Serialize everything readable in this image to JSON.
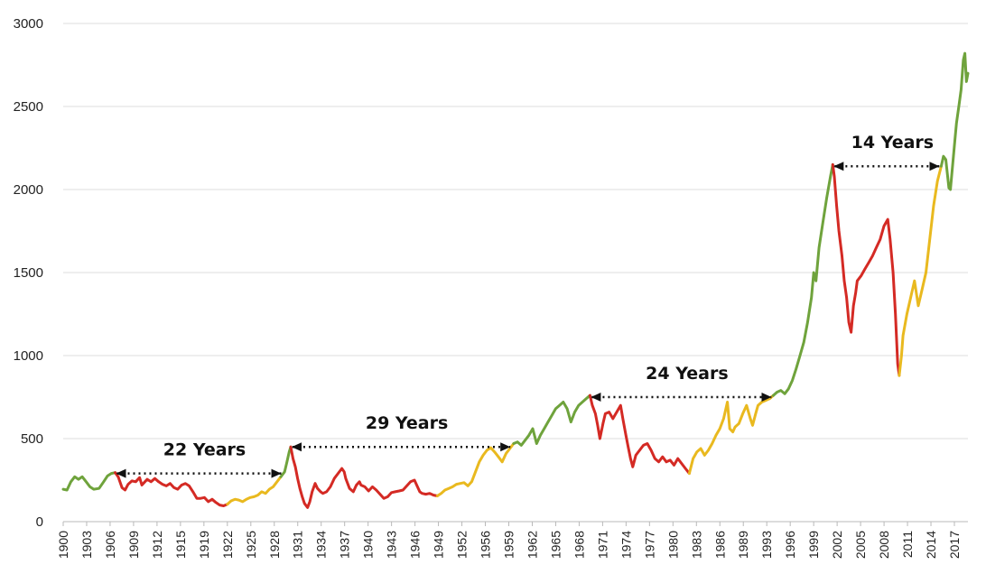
{
  "chart_data": {
    "type": "line",
    "title": "",
    "xlabel": "",
    "ylabel": "",
    "ylim": [
      0,
      3000
    ],
    "xlim": [
      1900,
      2018.5
    ],
    "grid": "horizontal",
    "y_ticks": [
      0,
      500,
      1000,
      1500,
      2000,
      2500,
      3000
    ],
    "x_ticks": [
      "1900",
      "1903",
      "1906",
      "1909",
      "1912",
      "1915",
      "1919",
      "1922",
      "1925",
      "1928",
      "1931",
      "1934",
      "1937",
      "1940",
      "1943",
      "1946",
      "1949",
      "1952",
      "1956",
      "1959",
      "1962",
      "1965",
      "1968",
      "1971",
      "1974",
      "1977",
      "1980",
      "1983",
      "1986",
      "1989",
      "1993",
      "1996",
      "1999",
      "2002",
      "2005",
      "2008",
      "2011",
      "2014",
      "2017"
    ],
    "colors": {
      "green": "#6fa33c",
      "red": "#d42a24",
      "yellow": "#e9b91f"
    },
    "series": [
      {
        "color": "green",
        "points": [
          [
            1900,
            195
          ],
          [
            1900.5,
            190
          ],
          [
            1901,
            240
          ],
          [
            1901.5,
            270
          ],
          [
            1902,
            255
          ],
          [
            1902.5,
            270
          ],
          [
            1903,
            240
          ],
          [
            1903.5,
            210
          ],
          [
            1904,
            195
          ],
          [
            1904.7,
            200
          ],
          [
            1905.3,
            240
          ],
          [
            1905.8,
            275
          ],
          [
            1906.3,
            290
          ],
          [
            1906.8,
            295
          ]
        ]
      },
      {
        "color": "red",
        "points": [
          [
            1906.8,
            295
          ],
          [
            1907.2,
            270
          ],
          [
            1907.7,
            205
          ],
          [
            1908.1,
            190
          ],
          [
            1908.5,
            225
          ],
          [
            1909,
            245
          ],
          [
            1909.5,
            240
          ],
          [
            1910,
            265
          ],
          [
            1910.3,
            220
          ],
          [
            1910.7,
            240
          ],
          [
            1911,
            255
          ],
          [
            1911.5,
            240
          ],
          [
            1912,
            260
          ],
          [
            1912.5,
            240
          ],
          [
            1913,
            225
          ],
          [
            1913.5,
            215
          ],
          [
            1914,
            230
          ],
          [
            1914.5,
            205
          ],
          [
            1915,
            195
          ],
          [
            1915.5,
            220
          ],
          [
            1916,
            230
          ],
          [
            1916.5,
            215
          ],
          [
            1917,
            180
          ],
          [
            1917.5,
            140
          ],
          [
            1918,
            140
          ],
          [
            1918.5,
            145
          ],
          [
            1919,
            120
          ],
          [
            1919.5,
            135
          ],
          [
            1920,
            115
          ],
          [
            1920.5,
            100
          ],
          [
            1921,
            95
          ],
          [
            1921.5,
            105
          ]
        ]
      },
      {
        "color": "yellow",
        "points": [
          [
            1921.5,
            105
          ],
          [
            1922,
            125
          ],
          [
            1922.5,
            135
          ],
          [
            1923,
            130
          ],
          [
            1923.5,
            120
          ],
          [
            1924,
            135
          ],
          [
            1924.5,
            145
          ],
          [
            1925,
            150
          ],
          [
            1925.5,
            160
          ],
          [
            1926,
            180
          ],
          [
            1926.5,
            170
          ],
          [
            1927,
            195
          ],
          [
            1927.5,
            210
          ],
          [
            1928,
            240
          ],
          [
            1928.5,
            270
          ]
        ]
      },
      {
        "color": "green",
        "points": [
          [
            1928.5,
            270
          ],
          [
            1929,
            300
          ],
          [
            1929.3,
            360
          ],
          [
            1929.6,
            420
          ],
          [
            1929.8,
            450
          ]
        ]
      },
      {
        "color": "red",
        "points": [
          [
            1929.8,
            450
          ],
          [
            1930.1,
            380
          ],
          [
            1930.4,
            330
          ],
          [
            1930.7,
            260
          ],
          [
            1931,
            200
          ],
          [
            1931.3,
            150
          ],
          [
            1931.6,
            110
          ],
          [
            1932,
            85
          ],
          [
            1932.3,
            120
          ],
          [
            1932.6,
            180
          ],
          [
            1933,
            230
          ],
          [
            1933.3,
            200
          ],
          [
            1933.7,
            180
          ],
          [
            1934,
            170
          ],
          [
            1934.5,
            180
          ],
          [
            1935,
            210
          ],
          [
            1935.5,
            260
          ],
          [
            1936,
            290
          ],
          [
            1936.5,
            320
          ],
          [
            1936.8,
            300
          ],
          [
            1937,
            260
          ],
          [
            1937.5,
            200
          ],
          [
            1938,
            180
          ],
          [
            1938.4,
            220
          ],
          [
            1938.8,
            240
          ],
          [
            1939,
            220
          ],
          [
            1939.5,
            210
          ],
          [
            1940,
            185
          ],
          [
            1940.5,
            210
          ],
          [
            1941,
            190
          ],
          [
            1941.5,
            165
          ],
          [
            1942,
            140
          ],
          [
            1942.5,
            150
          ],
          [
            1943,
            175
          ],
          [
            1943.5,
            180
          ],
          [
            1944,
            185
          ],
          [
            1944.5,
            190
          ],
          [
            1945,
            215
          ],
          [
            1945.5,
            240
          ],
          [
            1946,
            250
          ],
          [
            1946.3,
            220
          ],
          [
            1946.7,
            180
          ],
          [
            1947,
            170
          ],
          [
            1947.5,
            165
          ],
          [
            1948,
            170
          ],
          [
            1948.5,
            160
          ],
          [
            1949,
            155
          ]
        ]
      },
      {
        "color": "yellow",
        "points": [
          [
            1949,
            155
          ],
          [
            1949.5,
            170
          ],
          [
            1950,
            190
          ],
          [
            1950.5,
            200
          ],
          [
            1951,
            210
          ],
          [
            1951.5,
            225
          ],
          [
            1952,
            230
          ],
          [
            1952.5,
            235
          ],
          [
            1953,
            215
          ],
          [
            1953.5,
            240
          ],
          [
            1954,
            300
          ],
          [
            1954.5,
            360
          ],
          [
            1955,
            400
          ],
          [
            1955.5,
            430
          ],
          [
            1956,
            445
          ],
          [
            1956.5,
            420
          ],
          [
            1957,
            390
          ],
          [
            1957.5,
            360
          ],
          [
            1958,
            410
          ],
          [
            1958.5,
            440
          ],
          [
            1959,
            470
          ]
        ]
      },
      {
        "color": "green",
        "points": [
          [
            1959,
            470
          ],
          [
            1959.5,
            480
          ],
          [
            1960,
            460
          ],
          [
            1960.5,
            490
          ],
          [
            1961,
            520
          ],
          [
            1961.5,
            560
          ],
          [
            1962,
            470
          ],
          [
            1962.5,
            520
          ],
          [
            1963,
            560
          ],
          [
            1963.5,
            600
          ],
          [
            1964,
            640
          ],
          [
            1964.5,
            680
          ],
          [
            1965,
            700
          ],
          [
            1965.5,
            720
          ],
          [
            1966,
            680
          ],
          [
            1966.5,
            600
          ],
          [
            1967,
            660
          ],
          [
            1967.5,
            700
          ],
          [
            1968,
            720
          ],
          [
            1968.5,
            740
          ],
          [
            1969,
            760
          ]
        ]
      },
      {
        "color": "red",
        "points": [
          [
            1969,
            760
          ],
          [
            1969.3,
            700
          ],
          [
            1969.7,
            650
          ],
          [
            1970,
            580
          ],
          [
            1970.3,
            500
          ],
          [
            1970.7,
            590
          ],
          [
            1971,
            650
          ],
          [
            1971.5,
            660
          ],
          [
            1972,
            620
          ],
          [
            1972.5,
            660
          ],
          [
            1973,
            700
          ],
          [
            1973.3,
            620
          ],
          [
            1973.7,
            520
          ],
          [
            1974,
            450
          ],
          [
            1974.3,
            380
          ],
          [
            1974.6,
            330
          ],
          [
            1975,
            400
          ],
          [
            1975.5,
            430
          ],
          [
            1976,
            460
          ],
          [
            1976.5,
            470
          ],
          [
            1977,
            430
          ],
          [
            1977.5,
            380
          ],
          [
            1978,
            360
          ],
          [
            1978.5,
            390
          ],
          [
            1979,
            360
          ],
          [
            1979.5,
            370
          ],
          [
            1980,
            340
          ],
          [
            1980.5,
            380
          ],
          [
            1981,
            350
          ],
          [
            1981.5,
            320
          ],
          [
            1982,
            290
          ]
        ]
      },
      {
        "color": "yellow",
        "points": [
          [
            1982,
            290
          ],
          [
            1982.5,
            380
          ],
          [
            1983,
            420
          ],
          [
            1983.5,
            440
          ],
          [
            1984,
            400
          ],
          [
            1984.5,
            430
          ],
          [
            1985,
            470
          ],
          [
            1985.5,
            520
          ],
          [
            1986,
            560
          ],
          [
            1986.5,
            620
          ],
          [
            1987,
            720
          ],
          [
            1987.3,
            560
          ],
          [
            1987.7,
            540
          ],
          [
            1988,
            570
          ],
          [
            1988.5,
            590
          ],
          [
            1989,
            650
          ],
          [
            1989.5,
            700
          ],
          [
            1990,
            620
          ],
          [
            1990.3,
            580
          ],
          [
            1990.7,
            650
          ],
          [
            1991,
            700
          ],
          [
            1991.5,
            720
          ],
          [
            1992,
            730
          ],
          [
            1992.5,
            740
          ],
          [
            1993,
            760
          ]
        ]
      },
      {
        "color": "green",
        "points": [
          [
            1993,
            760
          ],
          [
            1993.5,
            780
          ],
          [
            1994,
            790
          ],
          [
            1994.5,
            770
          ],
          [
            1995,
            800
          ],
          [
            1995.5,
            850
          ],
          [
            1996,
            920
          ],
          [
            1996.5,
            1000
          ],
          [
            1997,
            1080
          ],
          [
            1997.5,
            1200
          ],
          [
            1998,
            1350
          ],
          [
            1998.3,
            1500
          ],
          [
            1998.6,
            1450
          ],
          [
            1999,
            1650
          ],
          [
            1999.5,
            1800
          ],
          [
            2000,
            1950
          ],
          [
            2000.5,
            2080
          ],
          [
            2000.8,
            2150
          ]
        ]
      },
      {
        "color": "red",
        "points": [
          [
            2000.8,
            2150
          ],
          [
            2001,
            2080
          ],
          [
            2001.3,
            1900
          ],
          [
            2001.6,
            1750
          ],
          [
            2002,
            1600
          ],
          [
            2002.3,
            1450
          ],
          [
            2002.6,
            1350
          ],
          [
            2002.9,
            1200
          ],
          [
            2003.2,
            1140
          ],
          [
            2003.5,
            1300
          ],
          [
            2003.8,
            1380
          ],
          [
            2004,
            1450
          ],
          [
            2004.5,
            1480
          ],
          [
            2005,
            1520
          ],
          [
            2005.5,
            1560
          ],
          [
            2006,
            1600
          ],
          [
            2006.5,
            1650
          ],
          [
            2007,
            1700
          ],
          [
            2007.5,
            1780
          ],
          [
            2008,
            1820
          ],
          [
            2008.3,
            1700
          ],
          [
            2008.7,
            1500
          ],
          [
            2009,
            1250
          ],
          [
            2009.3,
            950
          ],
          [
            2009.5,
            880
          ]
        ]
      },
      {
        "color": "yellow",
        "points": [
          [
            2009.5,
            880
          ],
          [
            2009.8,
            1000
          ],
          [
            2010,
            1120
          ],
          [
            2010.5,
            1250
          ],
          [
            2011,
            1350
          ],
          [
            2011.5,
            1450
          ],
          [
            2012,
            1300
          ],
          [
            2012.5,
            1400
          ],
          [
            2013,
            1500
          ],
          [
            2013.5,
            1700
          ],
          [
            2014,
            1900
          ],
          [
            2014.5,
            2050
          ],
          [
            2015,
            2140
          ]
        ]
      },
      {
        "color": "green",
        "points": [
          [
            2015,
            2140
          ],
          [
            2015.3,
            2200
          ],
          [
            2015.6,
            2180
          ],
          [
            2016,
            2010
          ],
          [
            2016.2,
            2000
          ],
          [
            2016.5,
            2150
          ],
          [
            2016.8,
            2300
          ],
          [
            2017,
            2400
          ],
          [
            2017.3,
            2500
          ],
          [
            2017.6,
            2600
          ],
          [
            2017.9,
            2780
          ],
          [
            2018.1,
            2820
          ],
          [
            2018.3,
            2650
          ],
          [
            2018.5,
            2700
          ]
        ]
      }
    ],
    "annotations": [
      {
        "text": "22 Years",
        "from": [
          1906.8,
          290
        ],
        "to": [
          1928.8,
          290
        ]
      },
      {
        "text": "29 Years",
        "from": [
          1929.8,
          450
        ],
        "to": [
          1958.8,
          450
        ]
      },
      {
        "text": "24 Years",
        "from": [
          1969,
          750
        ],
        "to": [
          1993,
          750
        ]
      },
      {
        "text": "14 Years",
        "from": [
          2000.8,
          2140
        ],
        "to": [
          2015,
          2140
        ]
      }
    ]
  }
}
